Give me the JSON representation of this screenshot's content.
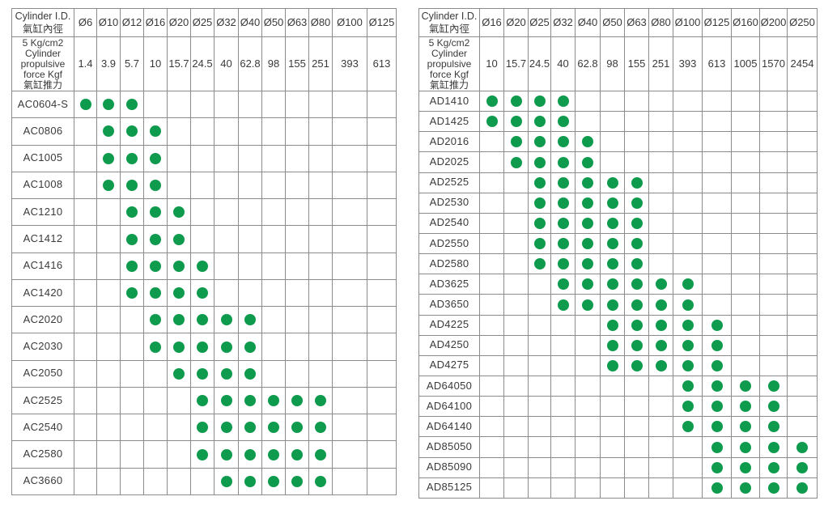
{
  "styles": {
    "dot_color": "#0f9b4d",
    "border_color": "#8b8b8b",
    "text_color": "#3a3a3a",
    "background": "#ffffff"
  },
  "tables": [
    {
      "corner_en": "Cylinder I.D.",
      "corner_zh": "氣缸內徑",
      "force_lines": [
        "5 Kg/cm2",
        "Cylinder",
        "propulsive",
        "force Kgf",
        "氣缸推力"
      ],
      "diameters": [
        "Ø6",
        "Ø10",
        "Ø12",
        "Ø16",
        "Ø20",
        "Ø25",
        "Ø32",
        "Ø40",
        "Ø50",
        "Ø63",
        "Ø80",
        "Ø100",
        "Ø125"
      ],
      "forces": [
        "1.4",
        "3.9",
        "5.7",
        "10",
        "15.7",
        "24.5",
        "40",
        "62.8",
        "98",
        "155",
        "251",
        "393",
        "613"
      ],
      "rows": [
        {
          "model": "AC0604-S",
          "dots": [
            1,
            1,
            1,
            0,
            0,
            0,
            0,
            0,
            0,
            0,
            0,
            0,
            0
          ]
        },
        {
          "model": "AC0806",
          "dots": [
            0,
            1,
            1,
            1,
            0,
            0,
            0,
            0,
            0,
            0,
            0,
            0,
            0
          ]
        },
        {
          "model": "AC1005",
          "dots": [
            0,
            1,
            1,
            1,
            0,
            0,
            0,
            0,
            0,
            0,
            0,
            0,
            0
          ]
        },
        {
          "model": "AC1008",
          "dots": [
            0,
            1,
            1,
            1,
            0,
            0,
            0,
            0,
            0,
            0,
            0,
            0,
            0
          ]
        },
        {
          "model": "AC1210",
          "dots": [
            0,
            0,
            1,
            1,
            1,
            0,
            0,
            0,
            0,
            0,
            0,
            0,
            0
          ]
        },
        {
          "model": "AC1412",
          "dots": [
            0,
            0,
            1,
            1,
            1,
            0,
            0,
            0,
            0,
            0,
            0,
            0,
            0
          ]
        },
        {
          "model": "AC1416",
          "dots": [
            0,
            0,
            1,
            1,
            1,
            1,
            0,
            0,
            0,
            0,
            0,
            0,
            0
          ]
        },
        {
          "model": "AC1420",
          "dots": [
            0,
            0,
            1,
            1,
            1,
            1,
            0,
            0,
            0,
            0,
            0,
            0,
            0
          ]
        },
        {
          "model": "AC2020",
          "dots": [
            0,
            0,
            0,
            1,
            1,
            1,
            1,
            1,
            0,
            0,
            0,
            0,
            0
          ]
        },
        {
          "model": "AC2030",
          "dots": [
            0,
            0,
            0,
            1,
            1,
            1,
            1,
            1,
            0,
            0,
            0,
            0,
            0
          ]
        },
        {
          "model": "AC2050",
          "dots": [
            0,
            0,
            0,
            0,
            1,
            1,
            1,
            1,
            0,
            0,
            0,
            0,
            0
          ]
        },
        {
          "model": "AC2525",
          "dots": [
            0,
            0,
            0,
            0,
            0,
            1,
            1,
            1,
            1,
            1,
            1,
            0,
            0
          ]
        },
        {
          "model": "AC2540",
          "dots": [
            0,
            0,
            0,
            0,
            0,
            1,
            1,
            1,
            1,
            1,
            1,
            0,
            0
          ]
        },
        {
          "model": "AC2580",
          "dots": [
            0,
            0,
            0,
            0,
            0,
            1,
            1,
            1,
            1,
            1,
            1,
            0,
            0
          ]
        },
        {
          "model": "AC3660",
          "dots": [
            0,
            0,
            0,
            0,
            0,
            0,
            1,
            1,
            1,
            1,
            1,
            0,
            0
          ]
        }
      ]
    },
    {
      "corner_en": "Cylinder I.D.",
      "corner_zh": "氣缸內徑",
      "force_lines": [
        "5 Kg/cm2",
        "Cylinder",
        "propulsive",
        "force Kgf",
        "氣缸推力"
      ],
      "diameters": [
        "Ø16",
        "Ø20",
        "Ø25",
        "Ø32",
        "Ø40",
        "Ø50",
        "Ø63",
        "Ø80",
        "Ø100",
        "Ø125",
        "Ø160",
        "Ø200",
        "Ø250"
      ],
      "forces": [
        "10",
        "15.7",
        "24.5",
        "40",
        "62.8",
        "98",
        "155",
        "251",
        "393",
        "613",
        "1005",
        "1570",
        "2454"
      ],
      "rows": [
        {
          "model": "AD1410",
          "dots": [
            1,
            1,
            1,
            1,
            0,
            0,
            0,
            0,
            0,
            0,
            0,
            0,
            0
          ]
        },
        {
          "model": "AD1425",
          "dots": [
            1,
            1,
            1,
            1,
            0,
            0,
            0,
            0,
            0,
            0,
            0,
            0,
            0
          ]
        },
        {
          "model": "AD2016",
          "dots": [
            0,
            1,
            1,
            1,
            1,
            0,
            0,
            0,
            0,
            0,
            0,
            0,
            0
          ]
        },
        {
          "model": "AD2025",
          "dots": [
            0,
            1,
            1,
            1,
            1,
            0,
            0,
            0,
            0,
            0,
            0,
            0,
            0
          ]
        },
        {
          "model": "AD2525",
          "dots": [
            0,
            0,
            1,
            1,
            1,
            1,
            1,
            0,
            0,
            0,
            0,
            0,
            0
          ]
        },
        {
          "model": "AD2530",
          "dots": [
            0,
            0,
            1,
            1,
            1,
            1,
            1,
            0,
            0,
            0,
            0,
            0,
            0
          ]
        },
        {
          "model": "AD2540",
          "dots": [
            0,
            0,
            1,
            1,
            1,
            1,
            1,
            0,
            0,
            0,
            0,
            0,
            0
          ]
        },
        {
          "model": "AD2550",
          "dots": [
            0,
            0,
            1,
            1,
            1,
            1,
            1,
            0,
            0,
            0,
            0,
            0,
            0
          ]
        },
        {
          "model": "AD2580",
          "dots": [
            0,
            0,
            1,
            1,
            1,
            1,
            1,
            0,
            0,
            0,
            0,
            0,
            0
          ]
        },
        {
          "model": "AD3625",
          "dots": [
            0,
            0,
            0,
            1,
            1,
            1,
            1,
            1,
            1,
            0,
            0,
            0,
            0
          ]
        },
        {
          "model": "AD3650",
          "dots": [
            0,
            0,
            0,
            1,
            1,
            1,
            1,
            1,
            1,
            0,
            0,
            0,
            0
          ]
        },
        {
          "model": "AD4225",
          "dots": [
            0,
            0,
            0,
            0,
            0,
            1,
            1,
            1,
            1,
            1,
            0,
            0,
            0
          ]
        },
        {
          "model": "AD4250",
          "dots": [
            0,
            0,
            0,
            0,
            0,
            1,
            1,
            1,
            1,
            1,
            0,
            0,
            0
          ]
        },
        {
          "model": "AD4275",
          "dots": [
            0,
            0,
            0,
            0,
            0,
            1,
            1,
            1,
            1,
            1,
            0,
            0,
            0
          ]
        },
        {
          "model": "AD64050",
          "dots": [
            0,
            0,
            0,
            0,
            0,
            0,
            0,
            0,
            1,
            1,
            1,
            1,
            0
          ]
        },
        {
          "model": "AD64100",
          "dots": [
            0,
            0,
            0,
            0,
            0,
            0,
            0,
            0,
            1,
            1,
            1,
            1,
            0
          ]
        },
        {
          "model": "AD64140",
          "dots": [
            0,
            0,
            0,
            0,
            0,
            0,
            0,
            0,
            1,
            1,
            1,
            1,
            0
          ]
        },
        {
          "model": "AD85050",
          "dots": [
            0,
            0,
            0,
            0,
            0,
            0,
            0,
            0,
            0,
            1,
            1,
            1,
            1
          ]
        },
        {
          "model": "AD85090",
          "dots": [
            0,
            0,
            0,
            0,
            0,
            0,
            0,
            0,
            0,
            1,
            1,
            1,
            1
          ]
        },
        {
          "model": "AD85125",
          "dots": [
            0,
            0,
            0,
            0,
            0,
            0,
            0,
            0,
            0,
            1,
            1,
            1,
            1
          ]
        }
      ]
    }
  ]
}
